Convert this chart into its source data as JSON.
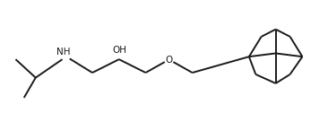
{
  "bg_color": "#ffffff",
  "line_color": "#1a1a1a",
  "line_width": 1.4,
  "fig_width": 3.66,
  "fig_height": 1.36,
  "dpi": 100,
  "oh_label": "OH",
  "nh_label": "NH",
  "o_label": "O",
  "label_fontsize": 7.5
}
